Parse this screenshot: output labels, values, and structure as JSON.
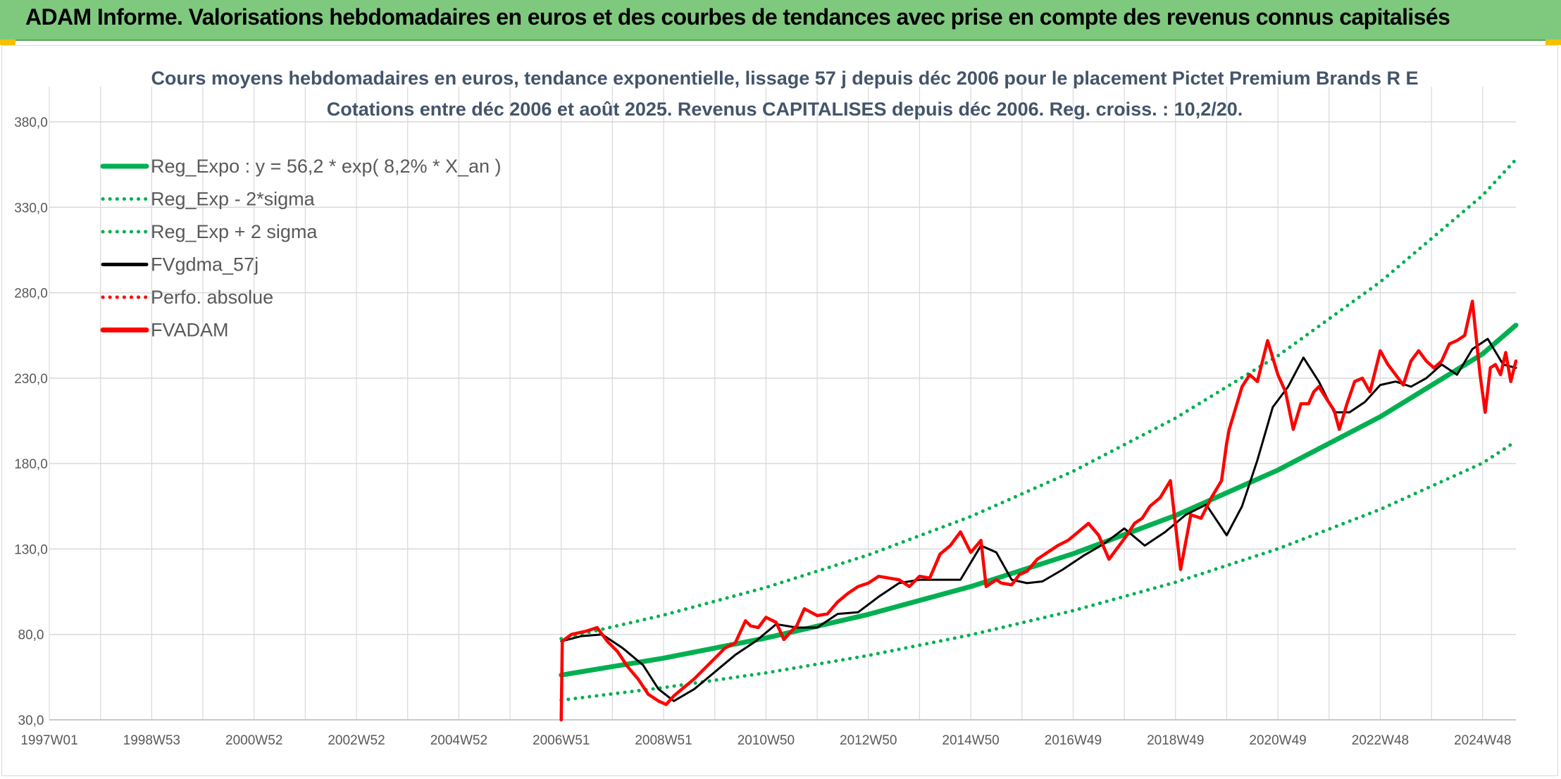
{
  "banner": {
    "title": "ADAM Informe. Valorisations hebdomadaires en euros et des courbes de tendances avec prise en compte des revenus connus capitalisés"
  },
  "colors": {
    "banner_bg": "#7fc97f",
    "regression": "#00b050",
    "gdma": "#000000",
    "fvadam": "#ff0000",
    "grid": "#d9d9d9",
    "title": "#44546a"
  },
  "chart_data": {
    "type": "line",
    "title": "Cours moyens hebdomadaires en euros, tendance exponentielle, lissage 57 j depuis déc 2006 pour le placement Pictet Premium Brands R E",
    "subtitle": "Cotations entre déc 2006 et août 2025. Revenus CAPITALISES depuis déc 2006. Reg. croiss. : 10,2/20.",
    "xlabel": "",
    "ylabel": "",
    "xlim": [
      1997.0,
      2025.65
    ],
    "ylim": [
      30,
      380
    ],
    "yticks": [
      "380,0",
      "330,0",
      "280,0",
      "230,0",
      "180,0",
      "130,0",
      "80,0",
      "30,0"
    ],
    "ytick_values": [
      380,
      330,
      280,
      230,
      180,
      130,
      80,
      30
    ],
    "xticks": [
      "1997W01",
      "1998W53",
      "2000W52",
      "2002W52",
      "2004W52",
      "2006W51",
      "2008W51",
      "2010W50",
      "2012W50",
      "2014W50",
      "2016W49",
      "2018W49",
      "2020W49",
      "2022W48",
      "2024W48"
    ],
    "xtick_values": [
      1997.0,
      1999.0,
      2001.0,
      2003.0,
      2005.0,
      2007.0,
      2009.0,
      2011.0,
      2013.0,
      2015.0,
      2017.0,
      2019.0,
      2021.0,
      2023.0,
      2025.0
    ],
    "grid": true,
    "legend_position": "top-left",
    "series": [
      {
        "name": "Reg_Expo : y = 56,2 * exp( 8,2% *  X_an )",
        "style": "solid-thick",
        "color": "#00b050",
        "x": [
          2007.0,
          2009.0,
          2011.0,
          2013.0,
          2015.0,
          2017.0,
          2019.0,
          2021.0,
          2023.0,
          2025.0,
          2025.65
        ],
        "y": [
          56.2,
          66.1,
          77.9,
          91.7,
          108.0,
          127.2,
          149.6,
          176.2,
          207.4,
          244.2,
          261.0
        ]
      },
      {
        "name": "Reg_Exp - 2*sigma",
        "style": "dotted",
        "color": "#00b050",
        "x": [
          2007.0,
          2009.0,
          2011.0,
          2013.0,
          2015.0,
          2017.0,
          2019.0,
          2021.0,
          2023.0,
          2025.0,
          2025.65
        ],
        "y": [
          41.5,
          48.9,
          57.5,
          67.7,
          79.7,
          93.9,
          110.5,
          130.1,
          153.2,
          180.3,
          193.0
        ]
      },
      {
        "name": "Reg_Exp + 2 sigma",
        "style": "dotted",
        "color": "#00b050",
        "x": [
          2007.0,
          2009.0,
          2011.0,
          2013.0,
          2015.0,
          2017.0,
          2019.0,
          2021.0,
          2023.0,
          2025.0,
          2025.65
        ],
        "y": [
          77.5,
          91.3,
          107.5,
          126.5,
          149.0,
          175.5,
          206.6,
          243.1,
          286.3,
          337.0,
          358.0
        ]
      },
      {
        "name": "FVgdma_57j",
        "style": "solid",
        "color": "#000000",
        "x": [
          2007.0,
          2007.4,
          2007.8,
          2008.2,
          2008.6,
          2008.9,
          2009.2,
          2009.6,
          2010.0,
          2010.4,
          2010.8,
          2011.2,
          2011.6,
          2012.0,
          2012.4,
          2012.8,
          2013.2,
          2013.6,
          2014.0,
          2014.4,
          2014.8,
          2015.2,
          2015.5,
          2015.8,
          2016.1,
          2016.4,
          2016.8,
          2017.2,
          2017.6,
          2018.0,
          2018.4,
          2018.8,
          2019.2,
          2019.6,
          2020.0,
          2020.3,
          2020.6,
          2020.9,
          2021.2,
          2021.5,
          2021.8,
          2022.1,
          2022.4,
          2022.7,
          2023.0,
          2023.3,
          2023.6,
          2023.9,
          2024.2,
          2024.5,
          2024.8,
          2025.1,
          2025.4,
          2025.65
        ],
        "y": [
          76,
          79,
          80,
          72,
          62,
          48,
          41,
          48,
          58,
          68,
          76,
          86,
          84,
          84,
          92,
          93,
          102,
          110,
          112,
          112,
          112,
          132,
          128,
          112,
          110,
          111,
          118,
          126,
          133,
          142,
          132,
          140,
          150,
          156,
          138,
          155,
          182,
          213,
          225,
          242,
          228,
          210,
          210,
          216,
          226,
          228,
          225,
          230,
          238,
          232,
          247,
          253,
          238,
          236
        ]
      },
      {
        "name": "Perfo. absolue",
        "style": "dotted",
        "color": "#ff0000",
        "x": [],
        "y": []
      },
      {
        "name": "FVADAM",
        "style": "solid-thick",
        "color": "#ff0000",
        "x": [
          2007.0,
          2007.02,
          2007.2,
          2007.5,
          2007.7,
          2007.9,
          2008.1,
          2008.3,
          2008.5,
          2008.7,
          2008.9,
          2009.05,
          2009.2,
          2009.4,
          2009.6,
          2009.8,
          2010.0,
          2010.2,
          2010.4,
          2010.6,
          2010.7,
          2010.85,
          2011.0,
          2011.2,
          2011.35,
          2011.5,
          2011.6,
          2011.75,
          2012.0,
          2012.2,
          2012.4,
          2012.6,
          2012.8,
          2013.0,
          2013.2,
          2013.4,
          2013.6,
          2013.8,
          2014.0,
          2014.2,
          2014.4,
          2014.6,
          2014.8,
          2015.0,
          2015.2,
          2015.3,
          2015.5,
          2015.6,
          2015.8,
          2015.95,
          2016.1,
          2016.3,
          2016.5,
          2016.7,
          2016.9,
          2017.1,
          2017.3,
          2017.5,
          2017.7,
          2017.9,
          2018.05,
          2018.2,
          2018.35,
          2018.5,
          2018.7,
          2018.9,
          2019.1,
          2019.3,
          2019.5,
          2019.7,
          2019.9,
          2020.0,
          2020.05,
          2020.15,
          2020.3,
          2020.45,
          2020.6,
          2020.8,
          2021.0,
          2021.15,
          2021.3,
          2021.45,
          2021.6,
          2021.7,
          2021.8,
          2021.95,
          2022.1,
          2022.2,
          2022.35,
          2022.5,
          2022.65,
          2022.8,
          2023.0,
          2023.15,
          2023.3,
          2023.45,
          2023.6,
          2023.75,
          2023.9,
          2024.05,
          2024.2,
          2024.35,
          2024.5,
          2024.65,
          2024.8,
          2024.95,
          2025.05,
          2025.15,
          2025.25,
          2025.35,
          2025.45,
          2025.55,
          2025.65
        ],
        "y": [
          30,
          76,
          80,
          82,
          84,
          76,
          70,
          61,
          54,
          45,
          41,
          39,
          44,
          49,
          54,
          60,
          66,
          72,
          75,
          88,
          85,
          84,
          90,
          87,
          77,
          82,
          85,
          95,
          91,
          92,
          99,
          104,
          108,
          110,
          114,
          113,
          112,
          108,
          114,
          113,
          127,
          132,
          140,
          128,
          135,
          108,
          112,
          110,
          109,
          115,
          117,
          124,
          128,
          132,
          135,
          140,
          145,
          138,
          124,
          132,
          138,
          145,
          148,
          155,
          160,
          170,
          118,
          150,
          148,
          160,
          170,
          192,
          200,
          210,
          225,
          232,
          228,
          252,
          232,
          222,
          200,
          215,
          215,
          222,
          225,
          218,
          211,
          200,
          215,
          228,
          230,
          222,
          246,
          238,
          232,
          226,
          240,
          246,
          240,
          236,
          240,
          250,
          252,
          255,
          275,
          232,
          210,
          236,
          238,
          232,
          245,
          228,
          240
        ]
      }
    ]
  }
}
